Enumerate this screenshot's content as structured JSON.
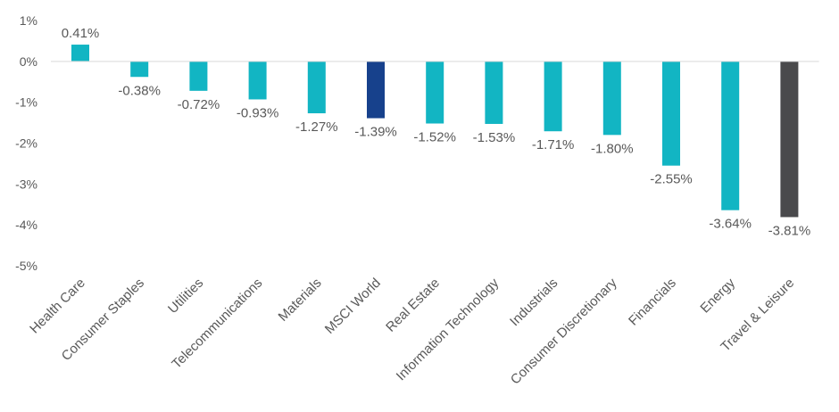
{
  "chart_data": {
    "type": "bar",
    "categories": [
      "Health Care",
      "Consumer Staples",
      "Utilities",
      "Telecommunications",
      "Materials",
      "MSCI World",
      "Real Estate",
      "Information Technology",
      "Industrials",
      "Consumer Discretionary",
      "Financials",
      "Energy",
      "Travel & Leisure"
    ],
    "values": [
      0.41,
      -0.38,
      -0.72,
      -0.93,
      -1.27,
      -1.39,
      -1.52,
      -1.53,
      -1.71,
      -1.8,
      -2.55,
      -3.64,
      -3.81
    ],
    "data_labels": [
      "0.41%",
      "-0.38%",
      "-0.72%",
      "-0.93%",
      "-1.27%",
      "-1.39%",
      "-1.52%",
      "-1.53%",
      "-1.71%",
      "-1.80%",
      "-2.55%",
      "-3.64%",
      "-3.81%"
    ],
    "bar_colors": [
      "#12b5c3",
      "#12b5c3",
      "#12b5c3",
      "#12b5c3",
      "#12b5c3",
      "#17418c",
      "#12b5c3",
      "#12b5c3",
      "#12b5c3",
      "#12b5c3",
      "#12b5c3",
      "#12b5c3",
      "#4a4a4c"
    ],
    "y_ticks": [
      1,
      0,
      -1,
      -2,
      -3,
      -4,
      -5
    ],
    "y_tick_labels": [
      "1%",
      "0%",
      "-1%",
      "-2%",
      "-3%",
      "-4%",
      "-5%"
    ],
    "ylim": [
      -5,
      1
    ],
    "title": "",
    "xlabel": "",
    "ylabel": "",
    "grid": false,
    "legend": "none"
  }
}
